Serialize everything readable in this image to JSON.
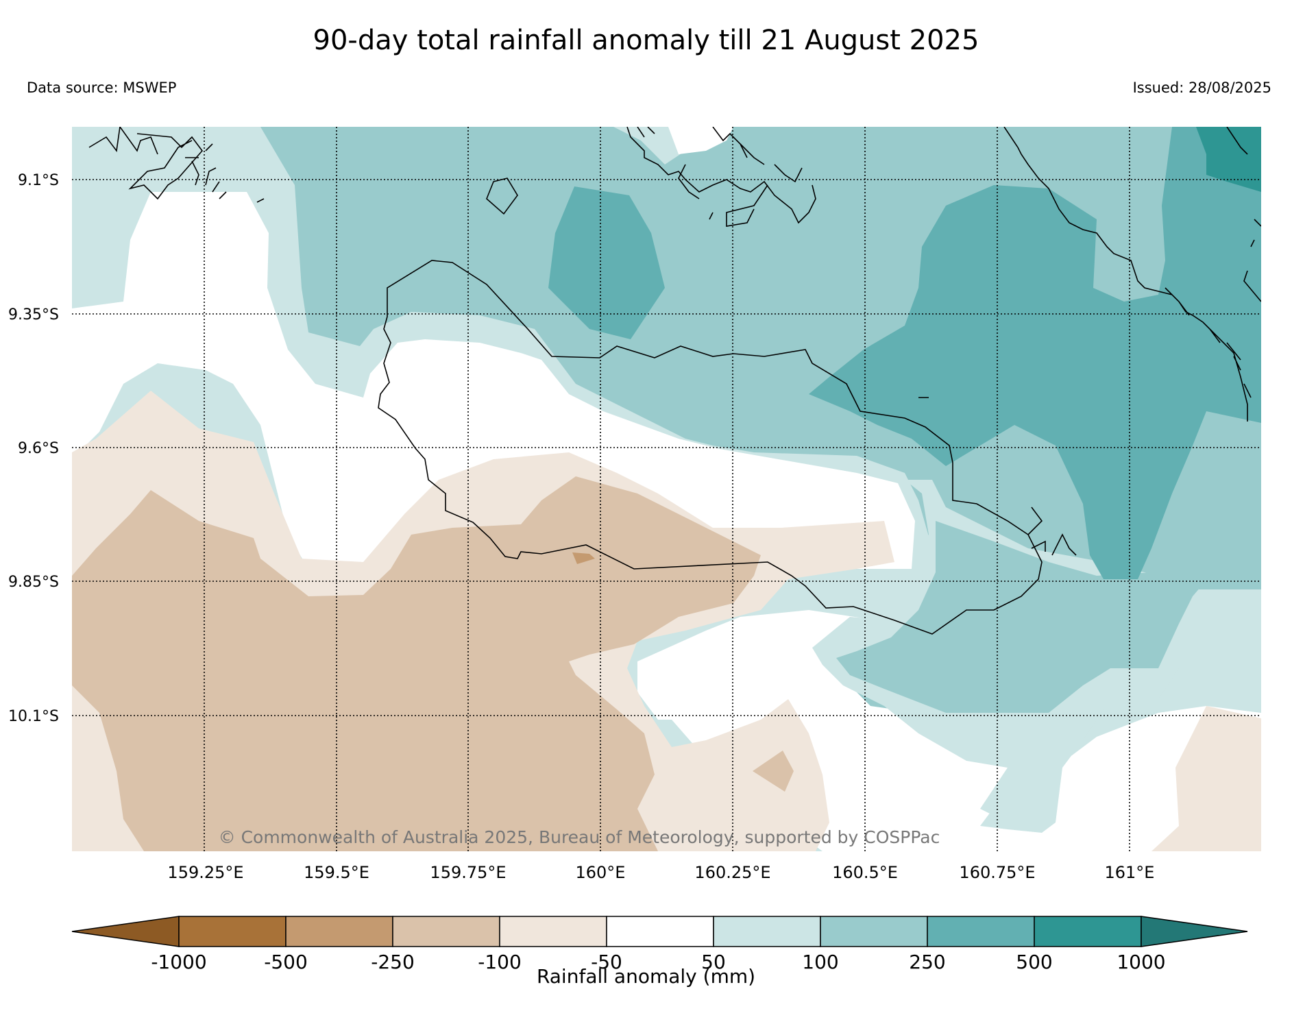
{
  "header": {
    "title": "90-day total rainfall anomaly till 21 August 2025",
    "data_source": "Data source: MSWEP",
    "issued": "Issued: 28/08/2025"
  },
  "map": {
    "copyright": "© Commonwealth of Australia 2025, Bureau of Meteorology, supported by COSPPac",
    "lat_labels": [
      "9.1°S",
      "9.35°S",
      "9.6°S",
      "9.85°S",
      "10.1°S"
    ],
    "lon_labels": [
      "159.25°E",
      "159.5°E",
      "159.75°E",
      "160°E",
      "160.25°E",
      "160.5°E",
      "160.75°E",
      "161°E"
    ],
    "fill_colors": {
      "neg_1000": "#8d5a24",
      "neg_500": "#a87238",
      "neg_250": "#c49a70",
      "neg_100": "#dac2aa",
      "neg_50": "#f0e6dc",
      "neutral": "#ffffff",
      "pos_50": "#cce5e5",
      "pos_100": "#99cbcc",
      "pos_250": "#62b0b2",
      "pos_500": "#2e9693",
      "pos_1000": "#237876"
    }
  },
  "colorbar": {
    "ticks": [
      "-1000",
      "-500",
      "-250",
      "-100",
      "-50",
      "50",
      "100",
      "250",
      "500",
      "1000"
    ],
    "label": "Rainfall anomaly (mm)"
  }
}
